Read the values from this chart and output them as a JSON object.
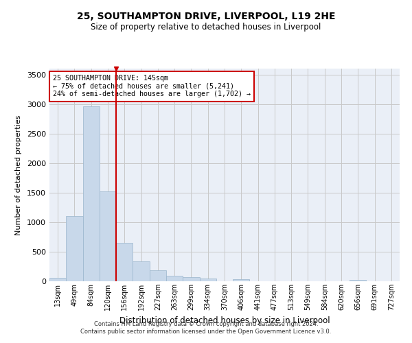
{
  "title_line1": "25, SOUTHAMPTON DRIVE, LIVERPOOL, L19 2HE",
  "title_line2": "Size of property relative to detached houses in Liverpool",
  "xlabel": "Distribution of detached houses by size in Liverpool",
  "ylabel": "Number of detached properties",
  "footer_line1": "Contains HM Land Registry data © Crown copyright and database right 2024.",
  "footer_line2": "Contains public sector information licensed under the Open Government Licence v3.0.",
  "annotation_line1": "25 SOUTHAMPTON DRIVE: 145sqm",
  "annotation_line2": "← 75% of detached houses are smaller (5,241)",
  "annotation_line3": "24% of semi-detached houses are larger (1,702) →",
  "bar_labels": [
    "13sqm",
    "49sqm",
    "84sqm",
    "120sqm",
    "156sqm",
    "192sqm",
    "227sqm",
    "263sqm",
    "299sqm",
    "334sqm",
    "370sqm",
    "406sqm",
    "441sqm",
    "477sqm",
    "513sqm",
    "549sqm",
    "584sqm",
    "620sqm",
    "656sqm",
    "691sqm",
    "727sqm"
  ],
  "bar_values": [
    55,
    1100,
    2960,
    1520,
    650,
    340,
    190,
    90,
    70,
    50,
    0,
    30,
    0,
    0,
    0,
    0,
    0,
    0,
    25,
    0,
    0
  ],
  "bar_color": "#c8d8ea",
  "bar_edge_color": "#9ab5cc",
  "red_line_color": "#cc0000",
  "grid_color": "#c8c8c8",
  "bg_color": "#eaeff7",
  "ylim": [
    0,
    3600
  ],
  "yticks": [
    0,
    500,
    1000,
    1500,
    2000,
    2500,
    3000,
    3500
  ],
  "red_line_index": 3.5
}
